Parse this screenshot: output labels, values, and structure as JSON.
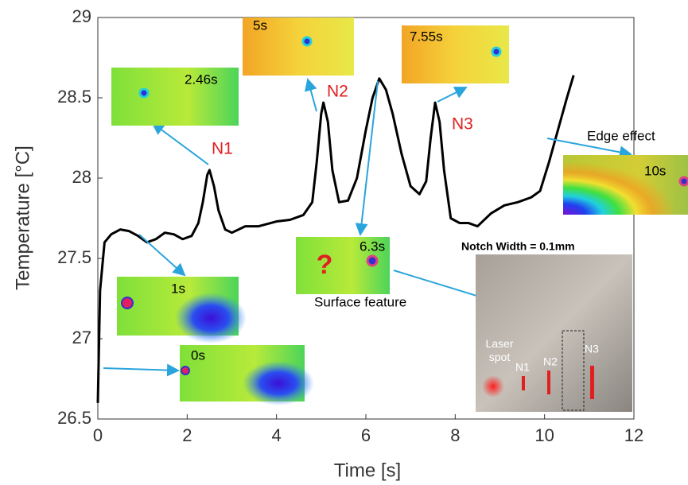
{
  "chart_data": {
    "type": "line",
    "xlabel": "Time [s]",
    "ylabel": "Temperature [°C]",
    "x": [
      0,
      0.05,
      0.15,
      0.3,
      0.5,
      0.7,
      0.9,
      1.1,
      1.3,
      1.5,
      1.7,
      1.9,
      2.1,
      2.25,
      2.35,
      2.45,
      2.5,
      2.6,
      2.7,
      2.85,
      3.0,
      3.3,
      3.6,
      4.0,
      4.3,
      4.6,
      4.8,
      4.9,
      5.0,
      5.05,
      5.15,
      5.25,
      5.4,
      5.6,
      5.8,
      6.0,
      6.15,
      6.3,
      6.45,
      6.6,
      6.8,
      7.0,
      7.2,
      7.35,
      7.45,
      7.55,
      7.65,
      7.75,
      7.9,
      8.1,
      8.3,
      8.5,
      8.8,
      9.1,
      9.4,
      9.7,
      9.9,
      10.1,
      10.3,
      10.5,
      10.65
    ],
    "series": [
      {
        "color": "#000000",
        "values": [
          26.6,
          27.3,
          27.6,
          27.65,
          27.68,
          27.67,
          27.64,
          27.6,
          27.62,
          27.66,
          27.65,
          27.62,
          27.64,
          27.72,
          27.85,
          28.02,
          28.05,
          27.95,
          27.8,
          27.68,
          27.66,
          27.7,
          27.7,
          27.73,
          27.74,
          27.77,
          27.85,
          28.1,
          28.4,
          28.47,
          28.35,
          28.05,
          27.85,
          27.86,
          28.0,
          28.3,
          28.5,
          28.62,
          28.55,
          28.4,
          28.15,
          27.95,
          27.9,
          27.98,
          28.25,
          28.47,
          28.35,
          28.05,
          27.75,
          27.72,
          27.72,
          27.7,
          27.78,
          27.83,
          27.85,
          27.88,
          27.92,
          28.1,
          28.3,
          28.5,
          28.64
        ]
      }
    ],
    "xlim": [
      0,
      12
    ],
    "ylim": [
      26.5,
      29
    ],
    "xticks": [
      0,
      2,
      4,
      6,
      8,
      10,
      12
    ],
    "yticks": [
      26.5,
      27,
      27.5,
      28,
      28.5,
      29
    ]
  },
  "annotations": {
    "peaks": [
      "N1",
      "N2",
      "N3"
    ],
    "edge_effect": "Edge effect",
    "surface_feature": "Surface feature",
    "question": "?",
    "frames": [
      "0s",
      "1s",
      "2.46s",
      "5s",
      "6.3s",
      "7.55s",
      "10s"
    ],
    "photo": {
      "title": "Notch Width = 0.1mm",
      "laser": "Laser spot",
      "notches": [
        "N1",
        "N2",
        "N3"
      ]
    }
  }
}
